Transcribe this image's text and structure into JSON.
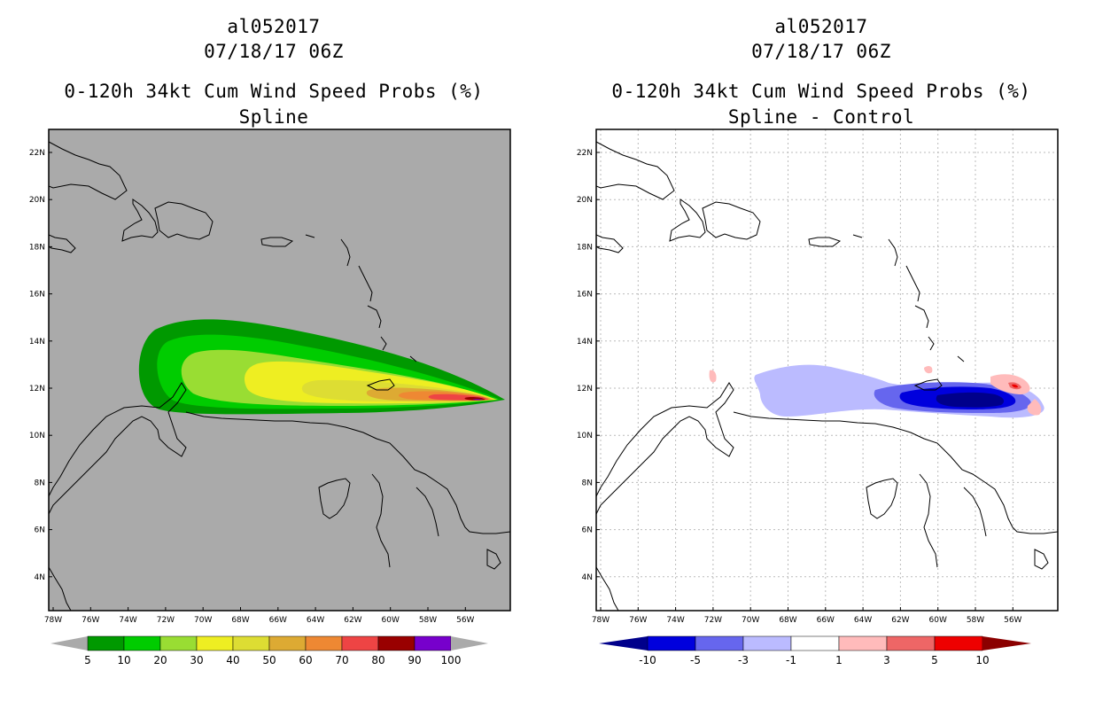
{
  "left_panel": {
    "storm_id": "al052017",
    "datetime": "07/18/17 06Z",
    "title": "0-120h 34kt Cum Wind Speed Probs (%)",
    "subtitle": "Spline",
    "colorbar": {
      "labels": [
        "5",
        "10",
        "20",
        "30",
        "40",
        "50",
        "60",
        "70",
        "80",
        "90",
        "100"
      ],
      "colors": [
        "#009900",
        "#00cc00",
        "#99dd33",
        "#eeee22",
        "#dddd33",
        "#ddaa33",
        "#ee8833",
        "#ee4444",
        "#990000",
        "#7700cc"
      ]
    }
  },
  "right_panel": {
    "storm_id": "al052017",
    "datetime": "07/18/17 06Z",
    "title": "0-120h 34kt Cum Wind Speed Probs (%)",
    "subtitle": "Spline - Control",
    "colorbar": {
      "labels": [
        "-10",
        "-5",
        "-3",
        "-1",
        "1",
        "3",
        "5",
        "10"
      ],
      "colors": [
        "#0000dd",
        "#6666ee",
        "#bbbbff",
        "#ffffff",
        "#ffbbbb",
        "#ee6666",
        "#ee0000"
      ],
      "end_left": "#00008b",
      "end_right": "#8b0000"
    }
  },
  "map_axes": {
    "lon_labels": [
      "78W",
      "76W",
      "74W",
      "72W",
      "70W",
      "68W",
      "66W",
      "64W",
      "62W",
      "60W",
      "58W",
      "56W"
    ],
    "lat_labels": [
      "22N",
      "20N",
      "18N",
      "16N",
      "14N",
      "12N",
      "10N",
      "8N",
      "6N",
      "4N"
    ]
  },
  "colors": {
    "map_background_left": "#aaaaaa",
    "map_background_right": "#ffffff",
    "grid": "#bbbbbb"
  }
}
